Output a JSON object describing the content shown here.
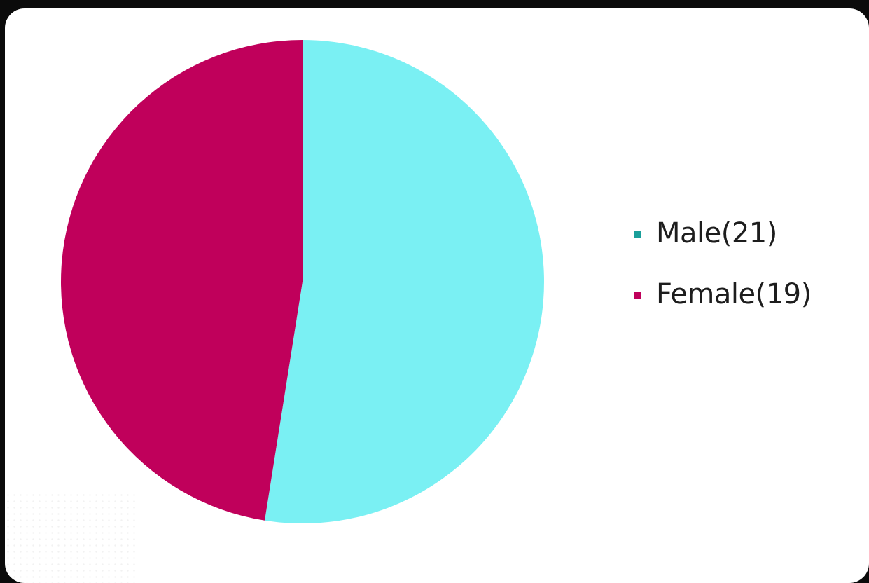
{
  "chart_data": {
    "type": "pie",
    "title": "",
    "categories": [
      "Male",
      "Female"
    ],
    "values": [
      21,
      19
    ],
    "legend": {
      "position": "right",
      "entries": [
        "Male(21)",
        "Female(19)"
      ]
    },
    "colors": {
      "Male_slice": "#7af0f3",
      "Female_slice": "#c0005b",
      "Male_swatch": "#1a9f9a",
      "Female_swatch": "#c0005b"
    }
  }
}
